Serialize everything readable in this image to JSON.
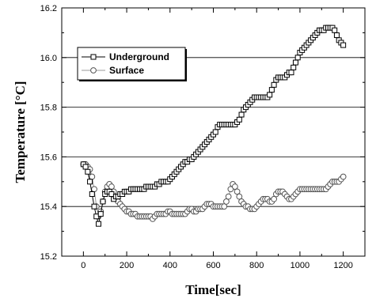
{
  "chart_data": {
    "type": "scatter",
    "title": "",
    "xlabel": "Time[sec]",
    "ylabel": "Temperature [°C]",
    "xlim": [
      -100,
      1300
    ],
    "ylim": [
      15.2,
      16.2
    ],
    "xticks": [
      0,
      200,
      400,
      600,
      800,
      1000,
      1200
    ],
    "yticks": [
      15.2,
      15.4,
      15.6,
      15.8,
      16.0,
      16.2
    ],
    "x_tick_labels": [
      "0",
      "200",
      "400",
      "600",
      "800",
      "1000",
      "1200"
    ],
    "y_tick_labels": [
      "15.2",
      "15.4",
      "15.6",
      "15.8",
      "16.0",
      "16.2"
    ],
    "grid": "horizontal",
    "legend_position": "top-left",
    "series": [
      {
        "name": "Underground",
        "marker": "square",
        "line_color": "#000000",
        "marker_edge_color": "#000000",
        "x": [
          0,
          10,
          20,
          30,
          40,
          50,
          60,
          70,
          80,
          90,
          100,
          110,
          120,
          130,
          140,
          150,
          160,
          170,
          180,
          190,
          200,
          210,
          220,
          230,
          240,
          250,
          260,
          270,
          280,
          290,
          300,
          310,
          320,
          330,
          340,
          350,
          360,
          370,
          380,
          390,
          400,
          410,
          420,
          430,
          440,
          450,
          460,
          470,
          480,
          490,
          500,
          510,
          520,
          530,
          540,
          550,
          560,
          570,
          580,
          590,
          600,
          610,
          620,
          630,
          640,
          650,
          660,
          670,
          680,
          690,
          700,
          710,
          720,
          730,
          740,
          750,
          760,
          770,
          780,
          790,
          800,
          810,
          820,
          830,
          840,
          850,
          860,
          870,
          880,
          890,
          900,
          910,
          920,
          930,
          940,
          950,
          960,
          970,
          980,
          990,
          1000,
          1010,
          1020,
          1030,
          1040,
          1050,
          1060,
          1070,
          1080,
          1090,
          1100,
          1110,
          1120,
          1130,
          1140,
          1150,
          1160,
          1170,
          1180,
          1190,
          1200
        ],
        "y": [
          15.57,
          15.56,
          15.54,
          15.5,
          15.45,
          15.4,
          15.36,
          15.33,
          15.37,
          15.42,
          15.45,
          15.46,
          15.46,
          15.45,
          15.43,
          15.44,
          15.44,
          15.45,
          15.45,
          15.46,
          15.46,
          15.46,
          15.47,
          15.47,
          15.47,
          15.47,
          15.47,
          15.47,
          15.47,
          15.48,
          15.48,
          15.48,
          15.48,
          15.48,
          15.49,
          15.49,
          15.5,
          15.5,
          15.5,
          15.5,
          15.51,
          15.52,
          15.53,
          15.54,
          15.55,
          15.56,
          15.57,
          15.58,
          15.58,
          15.59,
          15.59,
          15.6,
          15.61,
          15.62,
          15.63,
          15.64,
          15.65,
          15.66,
          15.67,
          15.68,
          15.69,
          15.7,
          15.72,
          15.73,
          15.73,
          15.73,
          15.73,
          15.73,
          15.73,
          15.73,
          15.73,
          15.74,
          15.75,
          15.77,
          15.79,
          15.8,
          15.81,
          15.82,
          15.83,
          15.84,
          15.84,
          15.84,
          15.84,
          15.84,
          15.84,
          15.84,
          15.85,
          15.87,
          15.89,
          15.91,
          15.92,
          15.92,
          15.92,
          15.92,
          15.93,
          15.94,
          15.94,
          15.96,
          15.98,
          16.0,
          16.02,
          16.03,
          16.04,
          16.05,
          16.06,
          16.07,
          16.08,
          16.09,
          16.1,
          16.11,
          16.11,
          16.11,
          16.12,
          16.12,
          16.12,
          16.12,
          16.11,
          16.09,
          16.07,
          16.06,
          16.05
        ]
      },
      {
        "name": "Surface",
        "marker": "circle",
        "line_color": "#999999",
        "marker_edge_color": "#555555",
        "x": [
          0,
          10,
          20,
          30,
          40,
          50,
          60,
          70,
          80,
          90,
          100,
          110,
          120,
          130,
          140,
          150,
          160,
          170,
          180,
          190,
          200,
          210,
          220,
          230,
          240,
          250,
          260,
          270,
          280,
          290,
          300,
          310,
          320,
          330,
          340,
          350,
          360,
          370,
          380,
          390,
          400,
          410,
          420,
          430,
          440,
          450,
          460,
          470,
          480,
          490,
          500,
          510,
          520,
          530,
          540,
          550,
          560,
          570,
          580,
          590,
          600,
          610,
          620,
          630,
          640,
          650,
          660,
          670,
          680,
          690,
          700,
          710,
          720,
          730,
          740,
          750,
          760,
          770,
          780,
          790,
          800,
          810,
          820,
          830,
          840,
          850,
          860,
          870,
          880,
          890,
          900,
          910,
          920,
          930,
          940,
          950,
          960,
          970,
          980,
          990,
          1000,
          1010,
          1020,
          1030,
          1040,
          1050,
          1060,
          1070,
          1080,
          1090,
          1100,
          1110,
          1120,
          1130,
          1140,
          1150,
          1160,
          1170,
          1180,
          1190,
          1200
        ],
        "y": [
          15.57,
          15.57,
          15.56,
          15.55,
          15.52,
          15.47,
          15.4,
          15.36,
          15.38,
          15.42,
          15.46,
          15.48,
          15.49,
          15.48,
          15.46,
          15.44,
          15.42,
          15.41,
          15.4,
          15.39,
          15.38,
          15.38,
          15.37,
          15.37,
          15.37,
          15.36,
          15.36,
          15.36,
          15.36,
          15.36,
          15.36,
          15.36,
          15.35,
          15.36,
          15.37,
          15.37,
          15.37,
          15.37,
          15.37,
          15.38,
          15.38,
          15.37,
          15.37,
          15.37,
          15.37,
          15.37,
          15.37,
          15.37,
          15.38,
          15.39,
          15.39,
          15.38,
          15.38,
          15.39,
          15.39,
          15.39,
          15.4,
          15.41,
          15.41,
          15.41,
          15.4,
          15.4,
          15.4,
          15.4,
          15.4,
          15.4,
          15.42,
          15.44,
          15.47,
          15.49,
          15.48,
          15.46,
          15.44,
          15.42,
          15.41,
          15.4,
          15.4,
          15.39,
          15.39,
          15.39,
          15.4,
          15.41,
          15.42,
          15.43,
          15.43,
          15.43,
          15.42,
          15.42,
          15.43,
          15.45,
          15.46,
          15.46,
          15.46,
          15.45,
          15.44,
          15.43,
          15.43,
          15.44,
          15.45,
          15.46,
          15.47,
          15.47,
          15.47,
          15.47,
          15.47,
          15.47,
          15.47,
          15.47,
          15.47,
          15.47,
          15.47,
          15.47,
          15.47,
          15.48,
          15.49,
          15.5,
          15.5,
          15.5,
          15.5,
          15.51,
          15.52
        ]
      }
    ]
  }
}
